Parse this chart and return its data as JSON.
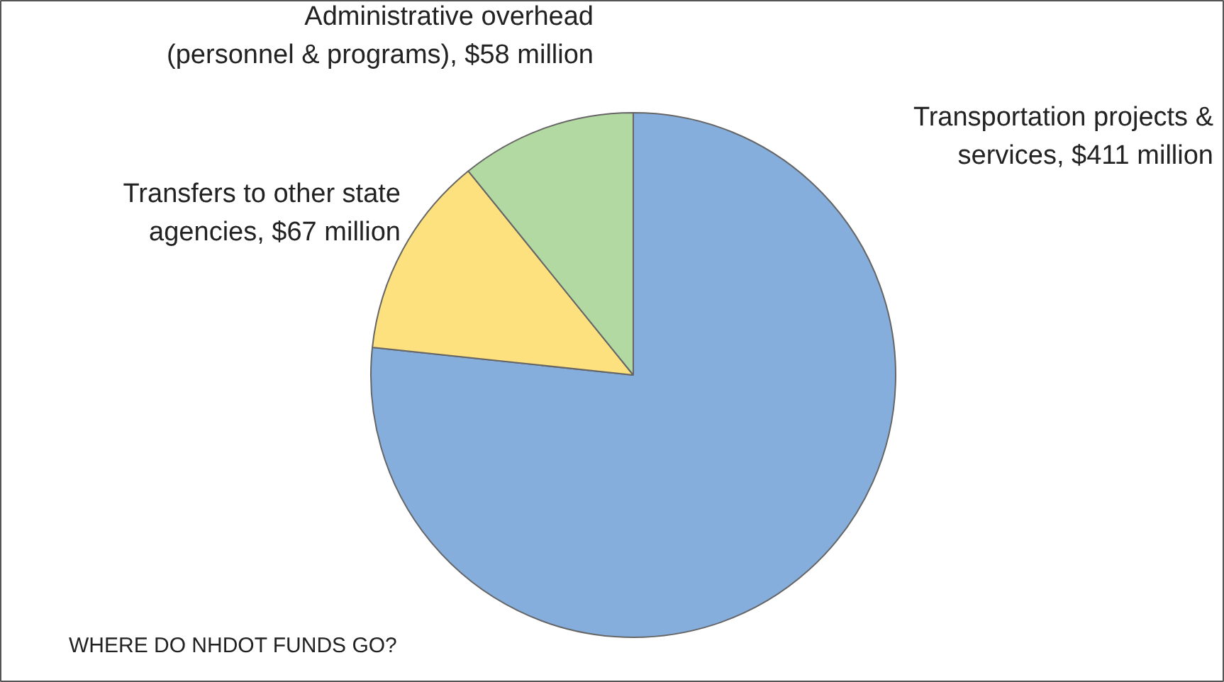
{
  "chart_data": {
    "type": "pie",
    "title": "WHERE DO NHDOT FUNDS GO?",
    "categories": [
      "Transportation projects &\nservices",
      "Transfers to other state\nagencies",
      "Administrative overhead\n(personnel & programs)"
    ],
    "values": [
      411,
      67,
      58
    ],
    "value_labels": [
      "$411 million",
      "$67 million",
      "$58 million"
    ],
    "colors": [
      "#85aedd",
      "#fde17f",
      "#b3d9a3"
    ]
  }
}
